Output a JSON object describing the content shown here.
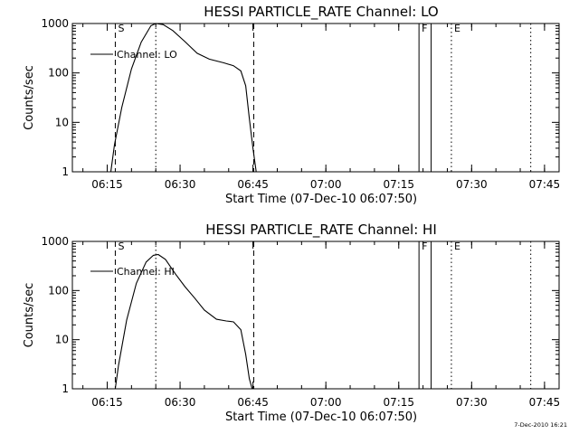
{
  "stamp": "7-Dec-2010 16:21",
  "chart_data": [
    {
      "type": "line",
      "title": "HESSI PARTICLE_RATE Channel: LO",
      "xlabel": "Start Time (07-Dec-10 06:07:50)",
      "ylabel": "Counts/sec",
      "y_scale": "log",
      "ylim": [
        1,
        1000
      ],
      "y_ticks": [
        "1",
        "10",
        "100",
        "1000"
      ],
      "xlim": [
        "06:07:50",
        "07:48:00"
      ],
      "x_ticks": [
        "06:15",
        "06:30",
        "06:45",
        "07:00",
        "07:15",
        "07:30",
        "07:45"
      ],
      "legend": "top-left",
      "series": [
        {
          "name": "Channel: LO",
          "x": [
            "06:15:45",
            "06:16:30",
            "06:18:00",
            "06:20:00",
            "06:22:00",
            "06:24:00",
            "06:25:00",
            "06:26:30",
            "06:28:30",
            "06:31:00",
            "06:33:30",
            "06:36:00",
            "06:39:00",
            "06:41:00",
            "06:42:30",
            "06:43:30",
            "06:44:15",
            "06:45:00",
            "06:45:40"
          ],
          "values": [
            1.0,
            3.5,
            20,
            120,
            420,
            900,
            1000,
            950,
            720,
            430,
            250,
            190,
            160,
            140,
            110,
            55,
            12,
            3,
            1.0
          ]
        }
      ],
      "markers": [
        {
          "time": "06:16:40",
          "style": "dashed",
          "label": "S"
        },
        {
          "time": "06:25:00",
          "style": "dotted",
          "label": ""
        },
        {
          "time": "06:45:10",
          "style": "dashed",
          "label": ""
        },
        {
          "time": "07:19:10",
          "style": "solid",
          "label": "F"
        },
        {
          "time": "07:21:40",
          "style": "solid",
          "label": ""
        },
        {
          "time": "07:25:50",
          "style": "dotted",
          "label": "E"
        },
        {
          "time": "07:42:10",
          "style": "dotted",
          "label": ""
        }
      ]
    },
    {
      "type": "line",
      "title": "HESSI PARTICLE_RATE Channel: HI",
      "xlabel": "Start Time (07-Dec-10 06:07:50)",
      "ylabel": "Counts/sec",
      "y_scale": "log",
      "ylim": [
        1,
        1000
      ],
      "y_ticks": [
        "1",
        "10",
        "100",
        "1000"
      ],
      "xlim": [
        "06:07:50",
        "07:48:00"
      ],
      "x_ticks": [
        "06:15",
        "06:30",
        "06:45",
        "07:00",
        "07:15",
        "07:30",
        "07:45"
      ],
      "legend": "top-left",
      "series": [
        {
          "name": "Channel: HI",
          "x": [
            "06:16:40",
            "06:17:20",
            "06:19:00",
            "06:21:00",
            "06:23:00",
            "06:24:30",
            "06:25:30",
            "06:27:00",
            "06:29:00",
            "06:31:00",
            "06:33:00",
            "06:35:00",
            "06:37:30",
            "06:39:30",
            "06:41:00",
            "06:42:30",
            "06:43:30",
            "06:44:15",
            "06:44:50"
          ],
          "values": [
            1.0,
            3,
            25,
            140,
            380,
            520,
            540,
            430,
            220,
            120,
            70,
            40,
            26,
            24,
            23,
            16,
            5,
            1.6,
            1.0
          ]
        }
      ],
      "markers": [
        {
          "time": "06:16:40",
          "style": "dashed",
          "label": "S"
        },
        {
          "time": "06:25:00",
          "style": "dotted",
          "label": ""
        },
        {
          "time": "06:45:10",
          "style": "dashed",
          "label": ""
        },
        {
          "time": "07:19:10",
          "style": "solid",
          "label": "F"
        },
        {
          "time": "07:21:40",
          "style": "solid",
          "label": ""
        },
        {
          "time": "07:25:50",
          "style": "dotted",
          "label": "E"
        },
        {
          "time": "07:42:10",
          "style": "dotted",
          "label": ""
        }
      ]
    }
  ]
}
